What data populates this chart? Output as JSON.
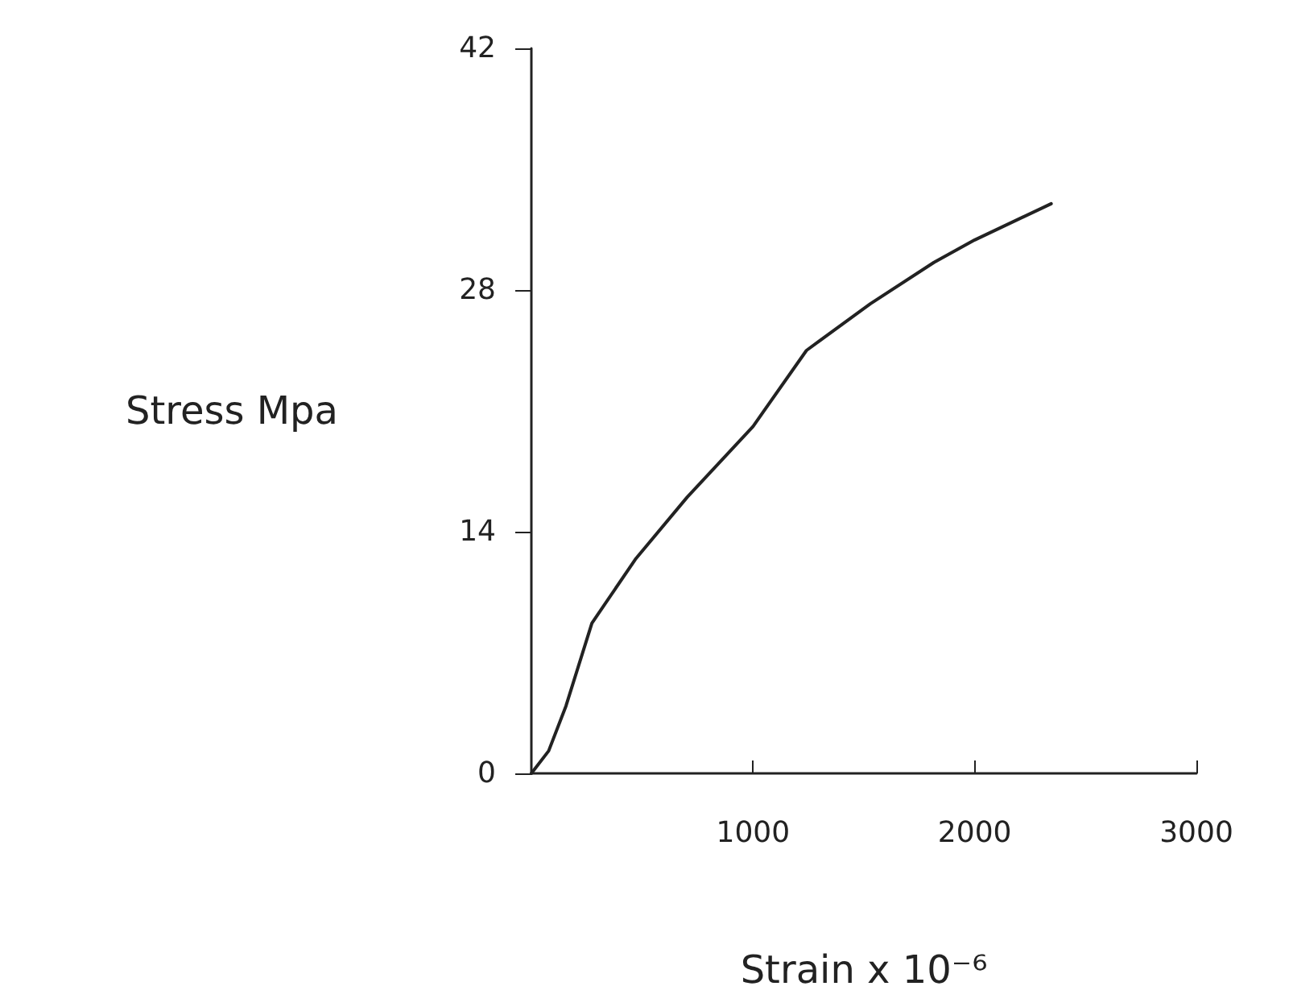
{
  "chart_data": {
    "type": "line",
    "xlabel": "Strain x 10⁻⁶",
    "ylabel": "Stress Mpa",
    "x": [
      0,
      78,
      156,
      273,
      469,
      703,
      1000,
      1241,
      1529,
      1816,
      2000,
      2345
    ],
    "series": [
      {
        "color": "#222222",
        "values": [
          0,
          1.3,
          3.9,
          8.7,
          12.4,
          16.0,
          20.1,
          24.5,
          27.2,
          29.6,
          30.9,
          33.0
        ]
      }
    ],
    "xlim": [
      0,
      3000
    ],
    "xticks": [
      1000,
      2000,
      3000
    ],
    "ylim": [
      0,
      42
    ],
    "yticks": [
      0,
      14,
      28,
      42
    ],
    "grid": false,
    "marker": "none",
    "line_style": "solid"
  }
}
